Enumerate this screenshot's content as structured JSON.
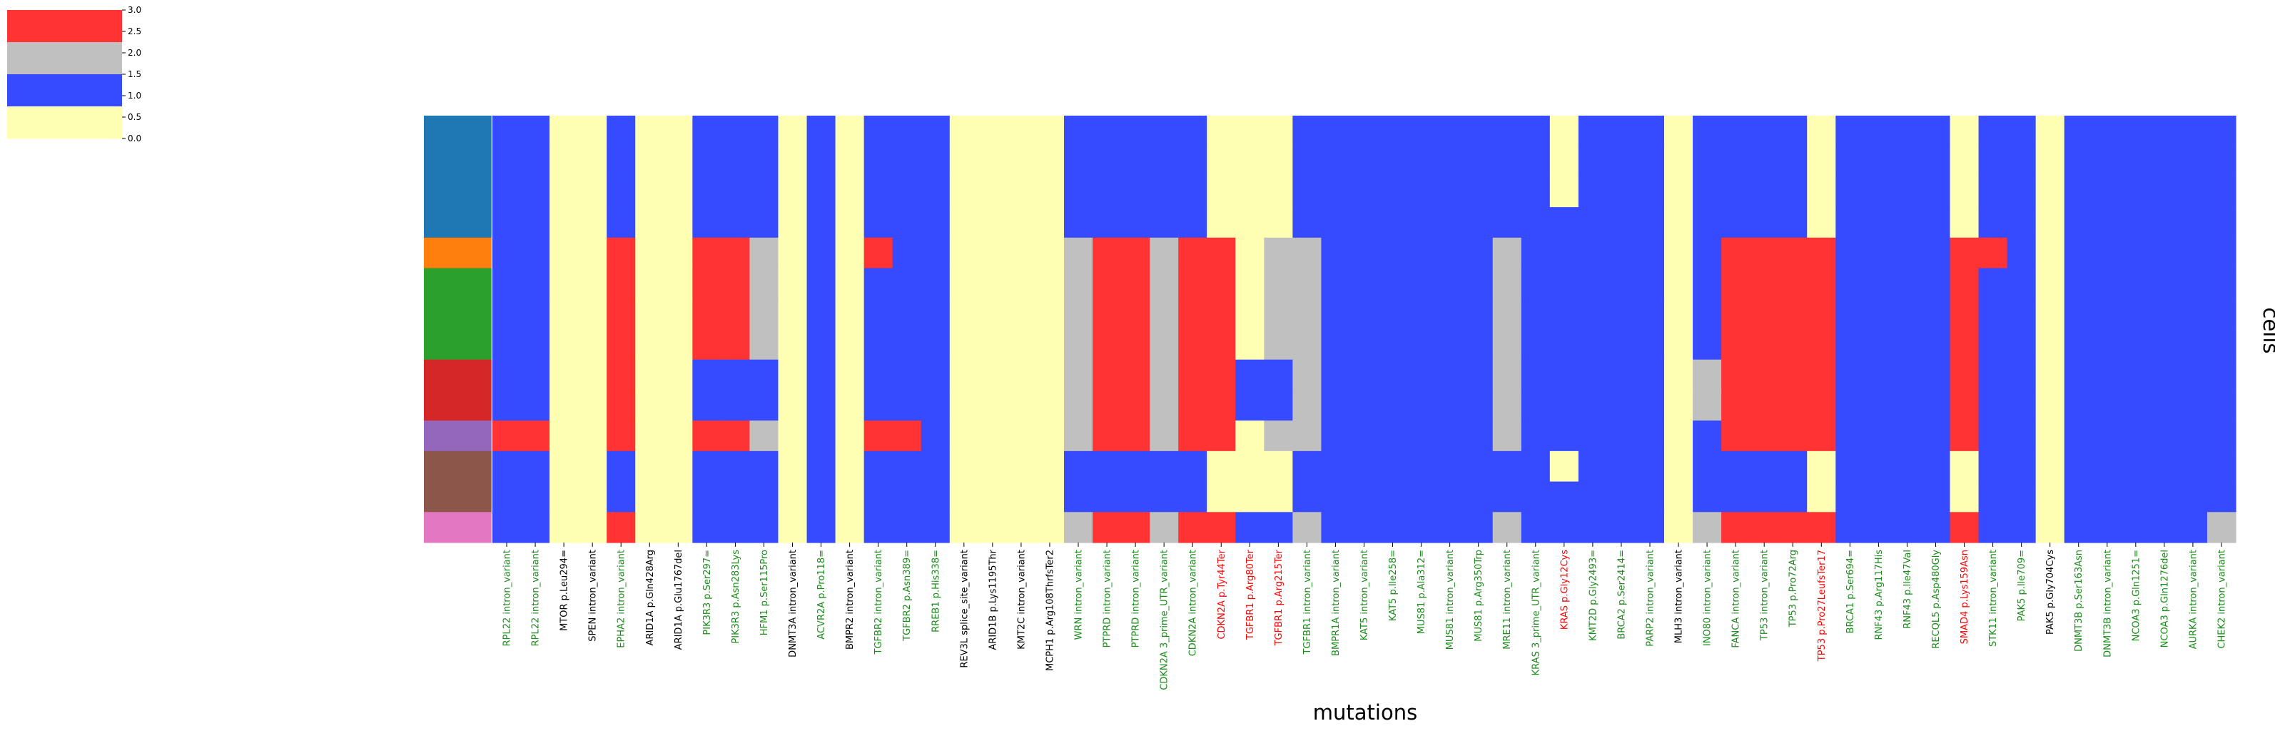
{
  "chart_data": {
    "type": "heatmap",
    "xlabel": "mutations",
    "ylabel": "cells",
    "colorbar": {
      "range": [
        0,
        3
      ],
      "ticks": [
        "0.0",
        "0.5",
        "1.0",
        "1.5",
        "2.0",
        "2.5",
        "3.0"
      ],
      "levels": [
        {
          "value": 0,
          "color": "#ffffb3"
        },
        {
          "value": 1,
          "color": "#364bff"
        },
        {
          "value": 2,
          "color": "#c0c0c0"
        },
        {
          "value": 3,
          "color": "#ff3333"
        }
      ]
    },
    "label_colors": {
      "g": "#1a8a1a",
      "k": "#000000",
      "r": "#ff0000"
    },
    "row_groups": [
      {
        "color": "#1f77b4",
        "row_count": 4
      },
      {
        "color": "#ff7f0e",
        "row_count": 1
      },
      {
        "color": "#2ca02c",
        "row_count": 3
      },
      {
        "color": "#d62728",
        "row_count": 2
      },
      {
        "color": "#9467bd",
        "row_count": 1
      },
      {
        "color": "#8c564b",
        "row_count": 2
      },
      {
        "color": "#e377c2",
        "row_count": 1
      }
    ],
    "columns": [
      {
        "label": "RPL22 intron_variant",
        "c": "g"
      },
      {
        "label": "RPL22 intron_variant",
        "c": "g"
      },
      {
        "label": "MTOR p.Leu294=",
        "c": "k"
      },
      {
        "label": "SPEN intron_variant",
        "c": "k"
      },
      {
        "label": "EPHA2 intron_variant",
        "c": "g"
      },
      {
        "label": "ARID1A p.Gln428Arg",
        "c": "k"
      },
      {
        "label": "ARID1A p.Glu1767del",
        "c": "k"
      },
      {
        "label": "PIK3R3 p.Ser297=",
        "c": "g"
      },
      {
        "label": "PIK3R3 p.Asn283Lys",
        "c": "g"
      },
      {
        "label": "HFM1 p.Ser115Pro",
        "c": "g"
      },
      {
        "label": "DNMT3A intron_variant",
        "c": "k"
      },
      {
        "label": "ACVR2A p.Pro118=",
        "c": "g"
      },
      {
        "label": "BMPR2 intron_variant",
        "c": "k"
      },
      {
        "label": "TGFBR2 intron_variant",
        "c": "g"
      },
      {
        "label": "TGFBR2 p.Asn389=",
        "c": "g"
      },
      {
        "label": "RREB1 p.His338=",
        "c": "g"
      },
      {
        "label": "REV3L splice_site_variant",
        "c": "k"
      },
      {
        "label": "ARID1B p.Lys1195Thr",
        "c": "k"
      },
      {
        "label": "KMT2C intron_variant",
        "c": "k"
      },
      {
        "label": "MCPH1 p.Arg108ThrfsTer2",
        "c": "k"
      },
      {
        "label": "WRN intron_variant",
        "c": "g"
      },
      {
        "label": "PTPRD intron_variant",
        "c": "g"
      },
      {
        "label": "PTPRD intron_variant",
        "c": "g"
      },
      {
        "label": "CDKN2A 3_prime_UTR_variant",
        "c": "g"
      },
      {
        "label": "CDKN2A intron_variant",
        "c": "g"
      },
      {
        "label": "CDKN2A p.Tyr44Ter",
        "c": "r"
      },
      {
        "label": "TGFBR1 p.Arg80Ter",
        "c": "r"
      },
      {
        "label": "TGFBR1 p.Arg215Ter",
        "c": "r"
      },
      {
        "label": "TGFBR1 intron_variant",
        "c": "g"
      },
      {
        "label": "BMPR1A intron_variant",
        "c": "g"
      },
      {
        "label": "KAT5 intron_variant",
        "c": "g"
      },
      {
        "label": "KAT5 p.Ile258=",
        "c": "g"
      },
      {
        "label": "MUS81 p.Ala312=",
        "c": "g"
      },
      {
        "label": "MUS81 intron_variant",
        "c": "g"
      },
      {
        "label": "MUS81 p.Arg350Trp",
        "c": "g"
      },
      {
        "label": "MRE11 intron_variant",
        "c": "g"
      },
      {
        "label": "KRAS 3_prime_UTR_variant",
        "c": "g"
      },
      {
        "label": "KRAS p.Gly12Cys",
        "c": "r"
      },
      {
        "label": "KMT2D p.Gly2493=",
        "c": "g"
      },
      {
        "label": "BRCA2 p.Ser2414=",
        "c": "g"
      },
      {
        "label": "PARP2 intron_variant",
        "c": "g"
      },
      {
        "label": "MLH3 intron_variant",
        "c": "k"
      },
      {
        "label": "INO80 intron_variant",
        "c": "g"
      },
      {
        "label": "FANCA intron_variant",
        "c": "g"
      },
      {
        "label": "TP53 intron_variant",
        "c": "g"
      },
      {
        "label": "TP53 p.Pro72Arg",
        "c": "g"
      },
      {
        "label": "TP53 p.Pro27LeufsTer17",
        "c": "r"
      },
      {
        "label": "BRCA1 p.Ser694=",
        "c": "g"
      },
      {
        "label": "RNF43 p.Arg117His",
        "c": "g"
      },
      {
        "label": "RNF43 p.Ile47Val",
        "c": "g"
      },
      {
        "label": "RECQL5 p.Asp480Gly",
        "c": "g"
      },
      {
        "label": "SMAD4 p.Lys159Asn",
        "c": "r"
      },
      {
        "label": "STK11 intron_variant",
        "c": "g"
      },
      {
        "label": "PAK5 p.Ile709=",
        "c": "g"
      },
      {
        "label": "PAK5 p.Gly704Cys",
        "c": "k"
      },
      {
        "label": "DNMT3B p.Ser163Asn",
        "c": "g"
      },
      {
        "label": "DNMT3B intron_variant",
        "c": "g"
      },
      {
        "label": "NCOA3 p.Gln1251=",
        "c": "g"
      },
      {
        "label": "NCOA3 p.Gln1276del",
        "c": "g"
      },
      {
        "label": "AURKA intron_variant",
        "c": "g"
      },
      {
        "label": "CHEK2 intron_variant",
        "c": "g"
      }
    ],
    "values": [
      [
        1,
        1,
        0,
        0,
        1,
        0,
        0,
        1,
        1,
        1,
        0,
        1,
        0,
        1,
        1,
        1,
        0,
        0,
        0,
        0,
        1,
        1,
        1,
        1,
        1,
        0,
        0,
        0,
        1,
        1,
        1,
        1,
        1,
        1,
        1,
        1,
        1,
        0,
        1,
        1,
        1,
        0,
        1,
        1,
        1,
        1,
        0,
        1,
        1,
        1,
        1,
        0,
        1,
        1,
        0,
        1,
        1,
        1,
        1,
        1,
        1
      ],
      [
        1,
        1,
        0,
        0,
        1,
        0,
        0,
        1,
        1,
        1,
        0,
        1,
        0,
        1,
        1,
        1,
        0,
        0,
        0,
        0,
        1,
        1,
        1,
        1,
        1,
        0,
        0,
        0,
        1,
        1,
        1,
        1,
        1,
        1,
        1,
        1,
        1,
        0,
        1,
        1,
        1,
        0,
        1,
        1,
        1,
        1,
        0,
        1,
        1,
        1,
        1,
        0,
        1,
        1,
        0,
        1,
        1,
        1,
        1,
        1,
        1
      ],
      [
        1,
        1,
        0,
        0,
        1,
        0,
        0,
        1,
        1,
        1,
        0,
        1,
        0,
        1,
        1,
        1,
        0,
        0,
        0,
        0,
        1,
        1,
        1,
        1,
        1,
        0,
        0,
        0,
        1,
        1,
        1,
        1,
        1,
        1,
        1,
        1,
        1,
        0,
        1,
        1,
        1,
        0,
        1,
        1,
        1,
        1,
        0,
        1,
        1,
        1,
        1,
        0,
        1,
        1,
        0,
        1,
        1,
        1,
        1,
        1,
        1
      ],
      [
        1,
        1,
        0,
        0,
        1,
        0,
        0,
        1,
        1,
        1,
        0,
        1,
        0,
        1,
        1,
        1,
        0,
        0,
        0,
        0,
        1,
        1,
        1,
        1,
        1,
        0,
        0,
        0,
        1,
        1,
        1,
        1,
        1,
        1,
        1,
        1,
        1,
        1,
        1,
        1,
        1,
        0,
        1,
        1,
        1,
        1,
        0,
        1,
        1,
        1,
        1,
        0,
        1,
        1,
        0,
        1,
        1,
        1,
        1,
        1,
        1
      ],
      [
        1,
        1,
        0,
        0,
        3,
        0,
        0,
        3,
        3,
        2,
        0,
        1,
        0,
        3,
        1,
        1,
        0,
        0,
        0,
        0,
        2,
        3,
        3,
        2,
        3,
        3,
        0,
        2,
        2,
        1,
        1,
        1,
        1,
        1,
        1,
        2,
        1,
        1,
        1,
        1,
        1,
        0,
        1,
        3,
        3,
        3,
        3,
        1,
        1,
        1,
        1,
        3,
        3,
        1,
        0,
        1,
        1,
        1,
        1,
        1,
        1
      ],
      [
        1,
        1,
        0,
        0,
        3,
        0,
        0,
        3,
        3,
        2,
        0,
        1,
        0,
        1,
        1,
        1,
        0,
        0,
        0,
        0,
        2,
        3,
        3,
        2,
        3,
        3,
        0,
        2,
        2,
        1,
        1,
        1,
        1,
        1,
        1,
        2,
        1,
        1,
        1,
        1,
        1,
        0,
        1,
        3,
        3,
        3,
        3,
        1,
        1,
        1,
        1,
        3,
        1,
        1,
        0,
        1,
        1,
        1,
        1,
        1,
        1
      ],
      [
        1,
        1,
        0,
        0,
        3,
        0,
        0,
        3,
        3,
        2,
        0,
        1,
        0,
        1,
        1,
        1,
        0,
        0,
        0,
        0,
        2,
        3,
        3,
        2,
        3,
        3,
        0,
        2,
        2,
        1,
        1,
        1,
        1,
        1,
        1,
        2,
        1,
        1,
        1,
        1,
        1,
        0,
        1,
        3,
        3,
        3,
        3,
        1,
        1,
        1,
        1,
        3,
        1,
        1,
        0,
        1,
        1,
        1,
        1,
        1,
        1
      ],
      [
        1,
        1,
        0,
        0,
        3,
        0,
        0,
        3,
        3,
        2,
        0,
        1,
        0,
        1,
        1,
        1,
        0,
        0,
        0,
        0,
        2,
        3,
        3,
        2,
        3,
        3,
        0,
        2,
        2,
        1,
        1,
        1,
        1,
        1,
        1,
        2,
        1,
        1,
        1,
        1,
        1,
        0,
        1,
        3,
        3,
        3,
        3,
        1,
        1,
        1,
        1,
        3,
        1,
        1,
        0,
        1,
        1,
        1,
        1,
        1,
        1
      ],
      [
        1,
        1,
        0,
        0,
        3,
        0,
        0,
        1,
        1,
        1,
        0,
        1,
        0,
        1,
        1,
        1,
        0,
        0,
        0,
        0,
        2,
        3,
        3,
        2,
        3,
        3,
        1,
        1,
        2,
        1,
        1,
        1,
        1,
        1,
        1,
        2,
        1,
        1,
        1,
        1,
        1,
        0,
        2,
        3,
        3,
        3,
        3,
        1,
        1,
        1,
        1,
        3,
        1,
        1,
        0,
        1,
        1,
        1,
        1,
        1,
        1
      ],
      [
        1,
        1,
        0,
        0,
        3,
        0,
        0,
        1,
        1,
        1,
        0,
        1,
        0,
        1,
        1,
        1,
        0,
        0,
        0,
        0,
        2,
        3,
        3,
        2,
        3,
        3,
        1,
        1,
        2,
        1,
        1,
        1,
        1,
        1,
        1,
        2,
        1,
        1,
        1,
        1,
        1,
        0,
        2,
        3,
        3,
        3,
        3,
        1,
        1,
        1,
        1,
        3,
        1,
        1,
        0,
        1,
        1,
        1,
        1,
        1,
        1
      ],
      [
        3,
        3,
        0,
        0,
        3,
        0,
        0,
        3,
        3,
        2,
        0,
        1,
        0,
        3,
        3,
        1,
        0,
        0,
        0,
        0,
        2,
        3,
        3,
        2,
        3,
        3,
        0,
        2,
        2,
        1,
        1,
        1,
        1,
        1,
        1,
        2,
        1,
        1,
        1,
        1,
        1,
        0,
        1,
        3,
        3,
        3,
        3,
        1,
        1,
        1,
        1,
        3,
        1,
        1,
        0,
        1,
        1,
        1,
        1,
        1,
        1
      ],
      [
        1,
        1,
        0,
        0,
        1,
        0,
        0,
        1,
        1,
        1,
        0,
        1,
        0,
        1,
        1,
        1,
        0,
        0,
        0,
        0,
        1,
        1,
        1,
        1,
        1,
        0,
        0,
        0,
        1,
        1,
        1,
        1,
        1,
        1,
        1,
        1,
        1,
        0,
        1,
        1,
        1,
        0,
        1,
        1,
        1,
        1,
        0,
        1,
        1,
        1,
        1,
        0,
        1,
        1,
        0,
        1,
        1,
        1,
        1,
        1,
        1
      ],
      [
        1,
        1,
        0,
        0,
        1,
        0,
        0,
        1,
        1,
        1,
        0,
        1,
        0,
        1,
        1,
        1,
        0,
        0,
        0,
        0,
        1,
        1,
        1,
        1,
        1,
        0,
        0,
        0,
        1,
        1,
        1,
        1,
        1,
        1,
        1,
        1,
        1,
        1,
        1,
        1,
        1,
        0,
        1,
        1,
        1,
        1,
        0,
        1,
        1,
        1,
        1,
        0,
        1,
        1,
        0,
        1,
        1,
        1,
        1,
        1,
        1
      ],
      [
        1,
        1,
        0,
        0,
        3,
        0,
        0,
        1,
        1,
        1,
        0,
        1,
        0,
        1,
        1,
        1,
        0,
        0,
        0,
        0,
        2,
        3,
        3,
        2,
        3,
        3,
        1,
        1,
        2,
        1,
        1,
        1,
        1,
        1,
        1,
        2,
        1,
        1,
        1,
        1,
        1,
        0,
        2,
        3,
        3,
        3,
        3,
        1,
        1,
        1,
        1,
        3,
        1,
        1,
        0,
        1,
        1,
        1,
        1,
        1,
        2
      ]
    ]
  }
}
